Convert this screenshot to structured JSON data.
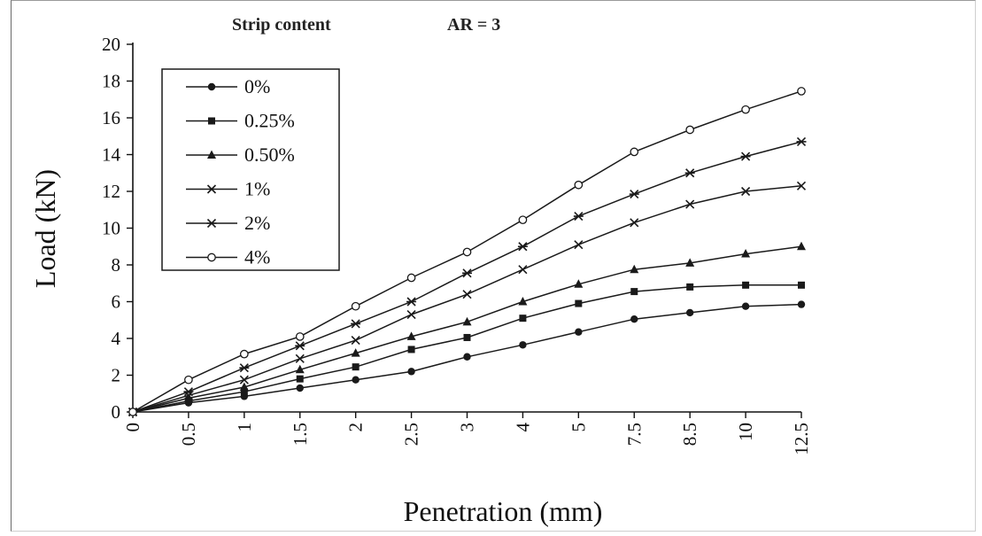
{
  "chart_data": {
    "type": "line",
    "annotations": [
      "Strip content",
      "AR = 3"
    ],
    "xlabel": "Penetration (mm)",
    "ylabel": "Load (kN)",
    "categories": [
      "0",
      "0.5",
      "1",
      "1.5",
      "2",
      "2.5",
      "3",
      "4",
      "5",
      "7.5",
      "8.5",
      "10",
      "12.5"
    ],
    "ylim": [
      0,
      20
    ],
    "yticks": [
      "0",
      "2",
      "4",
      "6",
      "8",
      "10",
      "12",
      "14",
      "16",
      "18",
      "20"
    ],
    "grid": false,
    "legend_position": "top-left",
    "series": [
      {
        "name": "0%",
        "marker": "circle-filled",
        "values": [
          0,
          0.5,
          0.85,
          1.3,
          1.75,
          2.2,
          3.0,
          3.65,
          4.35,
          5.05,
          5.4,
          5.75,
          5.85
        ]
      },
      {
        "name": "0.25%",
        "marker": "square-filled",
        "values": [
          0,
          0.6,
          1.1,
          1.8,
          2.45,
          3.4,
          4.05,
          5.1,
          5.9,
          6.55,
          6.8,
          6.9,
          6.9
        ]
      },
      {
        "name": "0.50%",
        "marker": "triangle-filled",
        "values": [
          0,
          0.75,
          1.35,
          2.3,
          3.2,
          4.1,
          4.9,
          6.0,
          6.95,
          7.75,
          8.1,
          8.6,
          9.0
        ]
      },
      {
        "name": "1%",
        "marker": "x",
        "values": [
          0,
          0.9,
          1.75,
          2.9,
          3.9,
          5.3,
          6.4,
          7.75,
          9.1,
          10.3,
          11.3,
          12.0,
          12.3
        ]
      },
      {
        "name": "2%",
        "marker": "star",
        "values": [
          0,
          1.1,
          2.4,
          3.6,
          4.8,
          6.0,
          7.55,
          9.0,
          10.65,
          11.85,
          13.0,
          13.9,
          14.7
        ]
      },
      {
        "name": "4%",
        "marker": "circle-open",
        "values": [
          0,
          1.75,
          3.15,
          4.1,
          5.75,
          7.3,
          8.7,
          10.45,
          12.35,
          14.15,
          15.35,
          16.45,
          17.45
        ]
      }
    ],
    "colors": {
      "line": "#1a1a1a",
      "axis": "#111111"
    }
  }
}
